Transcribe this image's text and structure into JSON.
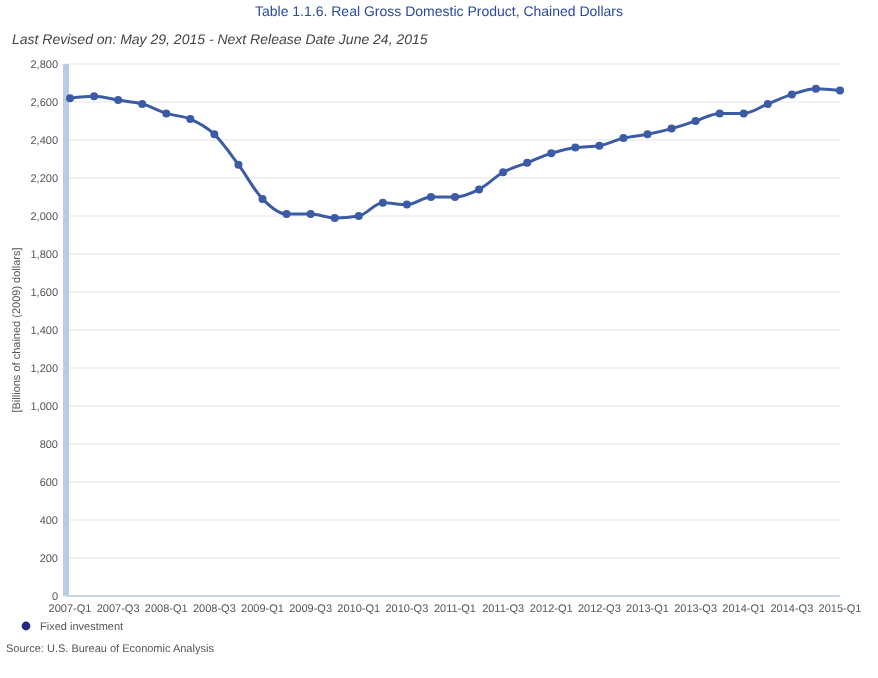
{
  "chart_data": {
    "type": "line",
    "title": "Table 1.1.6. Real Gross Domestic Product, Chained Dollars",
    "subtitle": "Last Revised on: May 29, 2015 - Next Release Date June 24, 2015",
    "ylabel": "[Billions of chained (2009) dollars]",
    "categories": [
      "2007-Q1",
      null,
      "2007-Q3",
      null,
      "2008-Q1",
      null,
      "2008-Q3",
      null,
      "2009-Q1",
      null,
      "2009-Q3",
      null,
      "2010-Q1",
      null,
      "2010-Q3",
      null,
      "2011-Q1",
      null,
      "2011-Q3",
      null,
      "2012-Q1",
      null,
      "2012-Q3",
      null,
      "2013-Q1",
      null,
      "2013-Q3",
      null,
      "2014-Q1",
      null,
      "2014-Q3",
      null,
      "2015-Q1"
    ],
    "series": [
      {
        "name": "Fixed investment",
        "color": "#3b5ba5",
        "values": [
          2620,
          2630,
          2610,
          2590,
          2540,
          2510,
          2430,
          2270,
          2090,
          2010,
          2010,
          1990,
          2000,
          2070,
          2060,
          2100,
          2100,
          2140,
          2230,
          2280,
          2330,
          2360,
          2370,
          2410,
          2430,
          2460,
          2500,
          2540,
          2540,
          2590,
          2640,
          2670,
          2660
        ]
      }
    ],
    "ylim": [
      0,
      2800
    ],
    "yticks": [
      {
        "value": 0,
        "label": "0"
      },
      {
        "value": 200,
        "label": "200"
      },
      {
        "value": 400,
        "label": "400"
      },
      {
        "value": 600,
        "label": "600"
      },
      {
        "value": 800,
        "label": "800"
      },
      {
        "value": 1000,
        "label": "1,000"
      },
      {
        "value": 1200,
        "label": "1,200"
      },
      {
        "value": 1400,
        "label": "1,400"
      },
      {
        "value": 1600,
        "label": "1,600"
      },
      {
        "value": 1800,
        "label": "1,800"
      },
      {
        "value": 2000,
        "label": "2,000"
      },
      {
        "value": 2200,
        "label": "2,200"
      },
      {
        "value": 2400,
        "label": "2,400"
      },
      {
        "value": 2600,
        "label": "2,600"
      },
      {
        "value": 2800,
        "label": "2,800"
      }
    ],
    "grid": "y",
    "legend": "bottom left",
    "marker": "circle",
    "line_style": "solid",
    "annotations": [
      "Source: U.S. Bureau of Economic Analysis"
    ]
  }
}
